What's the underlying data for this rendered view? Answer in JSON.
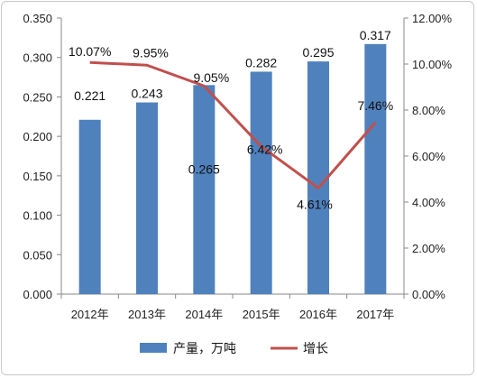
{
  "chart_data": {
    "type": "bar+line",
    "categories": [
      "2012年",
      "2013年",
      "2014年",
      "2015年",
      "2016年",
      "2017年"
    ],
    "series": [
      {
        "name": "产量，万吨",
        "type": "bar",
        "axis": "left",
        "values": [
          0.221,
          0.243,
          0.265,
          0.282,
          0.295,
          0.317
        ],
        "labels": [
          "0.221",
          "0.243",
          "0.265",
          "0.282",
          "0.295",
          "0.317"
        ],
        "color": "#4f81bd"
      },
      {
        "name": "增长",
        "type": "line",
        "axis": "right",
        "values": [
          10.07,
          9.95,
          9.05,
          6.42,
          4.61,
          7.46
        ],
        "labels": [
          "10.07%",
          "9.95%",
          "9.05%",
          "6.42%",
          "4.61%",
          "7.46%"
        ],
        "color": "#c0504d"
      }
    ],
    "y_left": {
      "min": 0,
      "max": 0.35,
      "ticks": [
        "0.000",
        "0.050",
        "0.100",
        "0.150",
        "0.200",
        "0.250",
        "0.300",
        "0.350"
      ]
    },
    "y_right": {
      "min": 0,
      "max": 12,
      "unit": "%",
      "ticks": [
        "0.00%",
        "2.00%",
        "4.00%",
        "6.00%",
        "8.00%",
        "10.00%",
        "12.00%"
      ]
    },
    "grid": false,
    "legend": "bottom"
  }
}
